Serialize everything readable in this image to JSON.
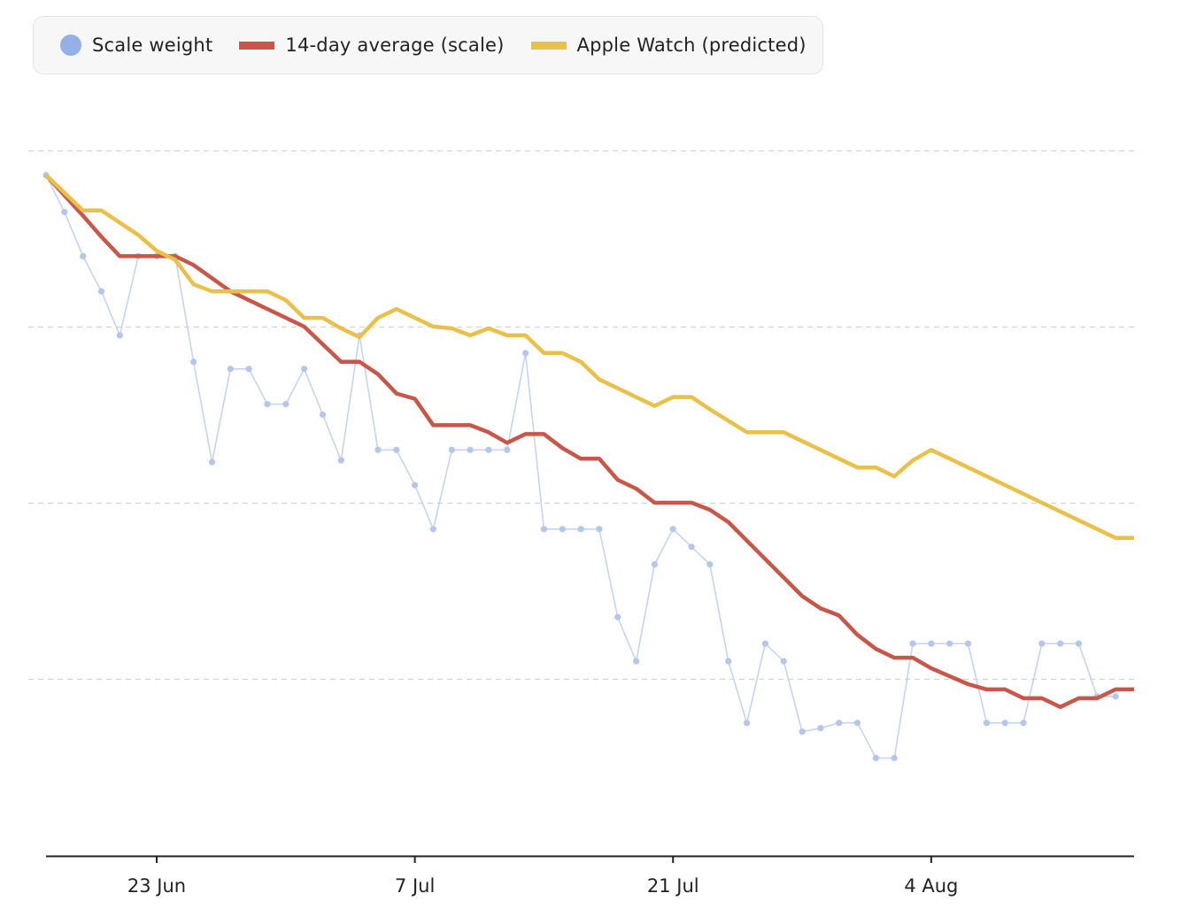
{
  "legend": {
    "placement": "top-left",
    "items": [
      {
        "label": "Scale weight",
        "color": "#94b0e6",
        "shape": "dot"
      },
      {
        "label": "14-day average (scale)",
        "color": "#c8574a",
        "shape": "line"
      },
      {
        "label": "Apple Watch (predicted)",
        "color": "#e8c04a",
        "shape": "line"
      }
    ]
  },
  "chart_data": {
    "type": "line",
    "title": "",
    "xlabel": "",
    "ylabel": "",
    "grid": true,
    "y_axis_labels": false,
    "xlim": [
      "2024-06-16",
      "2024-08-14"
    ],
    "ylim": [
      0,
      40
    ],
    "x_ticks": [
      {
        "date": "2024-06-22",
        "label": "23 Jun"
      },
      {
        "date": "2024-07-06",
        "label": "7 Jul"
      },
      {
        "date": "2024-07-20",
        "label": "21 Jul"
      },
      {
        "date": "2024-08-03",
        "label": "4 Aug"
      }
    ],
    "grid_values": [
      10,
      20,
      30,
      40
    ],
    "series": [
      {
        "name": "Scale weight",
        "color": "#94b0e6",
        "style": "dots",
        "values": [
          [
            "2024-06-16",
            38.6
          ],
          [
            "2024-06-17",
            36.5
          ],
          [
            "2024-06-18",
            34.0
          ],
          [
            "2024-06-19",
            32.0
          ],
          [
            "2024-06-20",
            29.5
          ],
          [
            "2024-06-21",
            34.0
          ],
          [
            "2024-06-22",
            34.0
          ],
          [
            "2024-06-23",
            34.0
          ],
          [
            "2024-06-24",
            28.0
          ],
          [
            "2024-06-25",
            22.3
          ],
          [
            "2024-06-26",
            27.6
          ],
          [
            "2024-06-27",
            27.6
          ],
          [
            "2024-06-28",
            25.6
          ],
          [
            "2024-06-29",
            25.6
          ],
          [
            "2024-06-30",
            27.6
          ],
          [
            "2024-07-01",
            25.0
          ],
          [
            "2024-07-02",
            22.4
          ],
          [
            "2024-07-03",
            29.5
          ],
          [
            "2024-07-04",
            23.0
          ],
          [
            "2024-07-05",
            23.0
          ],
          [
            "2024-07-06",
            21.0
          ],
          [
            "2024-07-07",
            18.5
          ],
          [
            "2024-07-08",
            23.0
          ],
          [
            "2024-07-09",
            23.0
          ],
          [
            "2024-07-10",
            23.0
          ],
          [
            "2024-07-11",
            23.0
          ],
          [
            "2024-07-12",
            28.5
          ],
          [
            "2024-07-13",
            18.5
          ],
          [
            "2024-07-14",
            18.5
          ],
          [
            "2024-07-15",
            18.5
          ],
          [
            "2024-07-16",
            18.5
          ],
          [
            "2024-07-17",
            13.5
          ],
          [
            "2024-07-18",
            11.0
          ],
          [
            "2024-07-19",
            16.5
          ],
          [
            "2024-07-20",
            18.5
          ],
          [
            "2024-07-21",
            17.5
          ],
          [
            "2024-07-22",
            16.5
          ],
          [
            "2024-07-23",
            11.0
          ],
          [
            "2024-07-24",
            7.5
          ],
          [
            "2024-07-25",
            12.0
          ],
          [
            "2024-07-26",
            11.0
          ],
          [
            "2024-07-27",
            7.0
          ],
          [
            "2024-07-28",
            7.2
          ],
          [
            "2024-07-29",
            7.5
          ],
          [
            "2024-07-30",
            7.5
          ],
          [
            "2024-07-31",
            5.5
          ],
          [
            "2024-08-01",
            5.5
          ],
          [
            "2024-08-02",
            12.0
          ],
          [
            "2024-08-03",
            12.0
          ],
          [
            "2024-08-04",
            12.0
          ],
          [
            "2024-08-05",
            12.0
          ],
          [
            "2024-08-06",
            7.5
          ],
          [
            "2024-08-07",
            7.5
          ],
          [
            "2024-08-08",
            7.5
          ],
          [
            "2024-08-09",
            12.0
          ],
          [
            "2024-08-10",
            12.0
          ],
          [
            "2024-08-11",
            12.0
          ],
          [
            "2024-08-12",
            9.0
          ],
          [
            "2024-08-13",
            9.0
          ]
        ]
      },
      {
        "name": "14-day average (scale)",
        "color": "#c8574a",
        "style": "line",
        "values": [
          [
            "2024-06-16",
            38.6
          ],
          [
            "2024-06-18",
            36.3
          ],
          [
            "2024-06-19",
            35.1
          ],
          [
            "2024-06-20",
            34.0
          ],
          [
            "2024-06-23",
            34.0
          ],
          [
            "2024-06-24",
            33.5
          ],
          [
            "2024-06-26",
            32.0
          ],
          [
            "2024-06-28",
            31.0
          ],
          [
            "2024-06-30",
            30.0
          ],
          [
            "2024-07-02",
            28.0
          ],
          [
            "2024-07-03",
            28.0
          ],
          [
            "2024-07-04",
            27.3
          ],
          [
            "2024-07-05",
            26.2
          ],
          [
            "2024-07-06",
            25.9
          ],
          [
            "2024-07-07",
            24.4
          ],
          [
            "2024-07-09",
            24.4
          ],
          [
            "2024-07-10",
            24.0
          ],
          [
            "2024-07-11",
            23.4
          ],
          [
            "2024-07-12",
            23.9
          ],
          [
            "2024-07-13",
            23.9
          ],
          [
            "2024-07-14",
            23.1
          ],
          [
            "2024-07-15",
            22.5
          ],
          [
            "2024-07-16",
            22.5
          ],
          [
            "2024-07-17",
            21.3
          ],
          [
            "2024-07-18",
            20.8
          ],
          [
            "2024-07-19",
            20.0
          ],
          [
            "2024-07-21",
            20.0
          ],
          [
            "2024-07-22",
            19.6
          ],
          [
            "2024-07-23",
            18.9
          ],
          [
            "2024-07-25",
            16.8
          ],
          [
            "2024-07-27",
            14.7
          ],
          [
            "2024-07-28",
            14.0
          ],
          [
            "2024-07-29",
            13.6
          ],
          [
            "2024-07-30",
            12.5
          ],
          [
            "2024-07-31",
            11.7
          ],
          [
            "2024-08-01",
            11.2
          ],
          [
            "2024-08-02",
            11.2
          ],
          [
            "2024-08-03",
            10.6
          ],
          [
            "2024-08-05",
            9.7
          ],
          [
            "2024-08-06",
            9.4
          ],
          [
            "2024-08-07",
            9.4
          ],
          [
            "2024-08-08",
            8.9
          ],
          [
            "2024-08-09",
            8.9
          ],
          [
            "2024-08-10",
            8.4
          ],
          [
            "2024-08-11",
            8.9
          ],
          [
            "2024-08-12",
            8.9
          ],
          [
            "2024-08-13",
            9.4
          ],
          [
            "2024-08-14",
            9.4
          ]
        ]
      },
      {
        "name": "Apple Watch (predicted)",
        "color": "#e8c04a",
        "style": "line",
        "values": [
          [
            "2024-06-16",
            38.6
          ],
          [
            "2024-06-18",
            36.6
          ],
          [
            "2024-06-19",
            36.6
          ],
          [
            "2024-06-21",
            35.2
          ],
          [
            "2024-06-22",
            34.3
          ],
          [
            "2024-06-23",
            33.8
          ],
          [
            "2024-06-24",
            32.4
          ],
          [
            "2024-06-25",
            32.0
          ],
          [
            "2024-06-28",
            32.0
          ],
          [
            "2024-06-29",
            31.5
          ],
          [
            "2024-06-30",
            30.5
          ],
          [
            "2024-07-01",
            30.5
          ],
          [
            "2024-07-02",
            29.9
          ],
          [
            "2024-07-03",
            29.4
          ],
          [
            "2024-07-04",
            30.5
          ],
          [
            "2024-07-05",
            31.0
          ],
          [
            "2024-07-07",
            30.0
          ],
          [
            "2024-07-08",
            29.9
          ],
          [
            "2024-07-09",
            29.5
          ],
          [
            "2024-07-10",
            29.9
          ],
          [
            "2024-07-11",
            29.5
          ],
          [
            "2024-07-12",
            29.5
          ],
          [
            "2024-07-13",
            28.5
          ],
          [
            "2024-07-14",
            28.5
          ],
          [
            "2024-07-15",
            28.0
          ],
          [
            "2024-07-16",
            27.0
          ],
          [
            "2024-07-19",
            25.5
          ],
          [
            "2024-07-20",
            26.0
          ],
          [
            "2024-07-21",
            26.0
          ],
          [
            "2024-07-22",
            25.3
          ],
          [
            "2024-07-24",
            24.0
          ],
          [
            "2024-07-26",
            24.0
          ],
          [
            "2024-07-30",
            22.0
          ],
          [
            "2024-07-31",
            22.0
          ],
          [
            "2024-08-01",
            21.5
          ],
          [
            "2024-08-02",
            22.4
          ],
          [
            "2024-08-03",
            23.0
          ],
          [
            "2024-08-13",
            18.0
          ],
          [
            "2024-08-14",
            18.0
          ]
        ]
      }
    ]
  }
}
